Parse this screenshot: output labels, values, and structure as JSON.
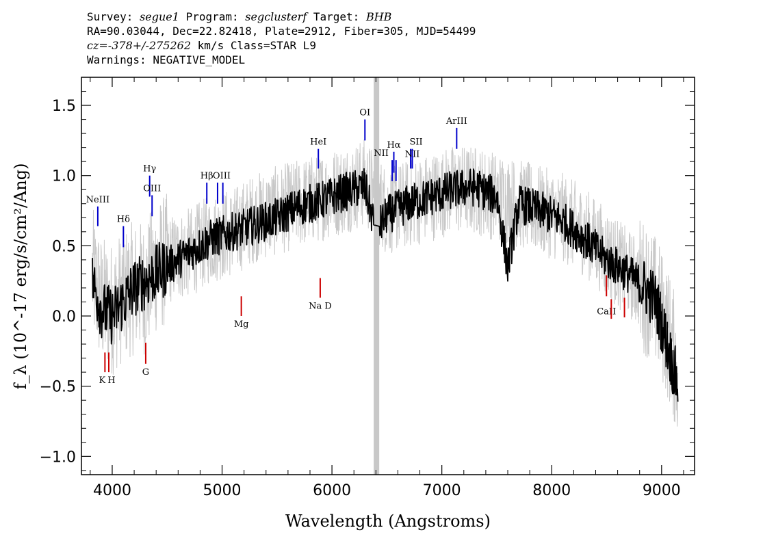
{
  "header": {
    "line1_a": "Survey: ",
    "survey": "segue1",
    "line1_b": " Program: ",
    "program": "segclusterf",
    "line1_c": " Target: ",
    "target": "BHB",
    "line2": "RA=90.03044, Dec=22.82418, Plate=2912, Fiber=305, MJD=54499",
    "line3_cz": "cz=-378+/-275262",
    "line3_rest": " km/s Class=STAR L9",
    "line4": "Warnings: NEGATIVE_MODEL"
  },
  "chart_data": {
    "type": "line",
    "xlabel": "Wavelength (Angstroms)",
    "ylabel": "f_λ (10^-17 erg/s/cm²/Ang)",
    "xlim": [
      3720,
      9300
    ],
    "ylim": [
      -1.13,
      1.7
    ],
    "xticks": [
      4000,
      5000,
      6000,
      7000,
      8000,
      9000
    ],
    "xtick_labels": [
      "4000",
      "5000",
      "6000",
      "7000",
      "8000",
      "9000"
    ],
    "yticks": [
      1.5,
      1.0,
      0.5,
      0.0,
      -0.5,
      -1.0
    ],
    "ytick_labels": [
      "1.5",
      "1.0",
      "0.5",
      "0.0",
      "−0.5",
      "−1.0"
    ],
    "grid": false,
    "masked_band": [
      6380,
      6430
    ],
    "series": [
      {
        "color": "#c8c8c8",
        "x": [
          3820,
          3900,
          4000,
          4100,
          4200,
          4300,
          4400,
          4500,
          4700,
          4900,
          5100,
          5300,
          5500,
          5700,
          5900,
          6100,
          6300,
          6500,
          6700,
          6900,
          7100,
          7300,
          7500,
          7700,
          7900,
          8100,
          8300,
          8500,
          8700,
          8850,
          8950,
          9050,
          9150
        ],
        "y": [
          0.3,
          0.1,
          0.05,
          0.15,
          0.2,
          0.2,
          0.35,
          0.4,
          0.45,
          0.55,
          0.6,
          0.7,
          0.75,
          0.8,
          0.85,
          0.9,
          0.95,
          0.75,
          0.8,
          0.85,
          0.9,
          0.9,
          0.85,
          0.8,
          0.75,
          0.7,
          0.6,
          0.45,
          0.3,
          0.2,
          0.1,
          -0.1,
          -0.4
        ]
      },
      {
        "color": "#000000",
        "x": [
          3820,
          3900,
          4000,
          4100,
          4200,
          4300,
          4400,
          4500,
          4700,
          4900,
          5100,
          5300,
          5500,
          5700,
          5900,
          6100,
          6300,
          6400,
          6500,
          6700,
          6900,
          7100,
          7300,
          7500,
          7600,
          7700,
          7900,
          8100,
          8300,
          8500,
          8700,
          8850,
          8950,
          9050,
          9150
        ],
        "y": [
          0.25,
          0.05,
          0.0,
          0.1,
          0.2,
          0.25,
          0.3,
          0.35,
          0.45,
          0.55,
          0.6,
          0.65,
          0.7,
          0.78,
          0.82,
          0.88,
          0.92,
          0.6,
          0.72,
          0.8,
          0.85,
          0.9,
          0.92,
          0.85,
          0.35,
          0.8,
          0.75,
          0.68,
          0.55,
          0.4,
          0.3,
          0.2,
          0.1,
          -0.2,
          -0.5
        ]
      }
    ],
    "line_markers": [
      {
        "label": "NeIII",
        "x": 3869,
        "y1": 0.64,
        "y2": 0.78,
        "color": "#0000cc",
        "anchor": "top"
      },
      {
        "label": "Hδ",
        "x": 4102,
        "y1": 0.49,
        "y2": 0.64,
        "color": "#0000cc",
        "anchor": "top"
      },
      {
        "label": "Hγ",
        "x": 4341,
        "y1": 0.85,
        "y2": 1.0,
        "color": "#0000cc",
        "anchor": "top"
      },
      {
        "label": "OIII",
        "x": 4363,
        "y1": 0.71,
        "y2": 0.86,
        "color": "#0000cc",
        "anchor": "top"
      },
      {
        "label": "Hβ",
        "x": 4861,
        "y1": 0.8,
        "y2": 0.95,
        "color": "#0000cc",
        "anchor": "top"
      },
      {
        "label": "OIII",
        "x": 4959,
        "y1": 0.8,
        "y2": 0.95,
        "color": "#0000cc",
        "anchor": "top",
        "label_dx": 6
      },
      {
        "label": "",
        "x": 5007,
        "y1": 0.8,
        "y2": 0.95,
        "color": "#0000cc",
        "anchor": "top"
      },
      {
        "label": "HeI",
        "x": 5876,
        "y1": 1.05,
        "y2": 1.19,
        "color": "#0000cc",
        "anchor": "top"
      },
      {
        "label": "OI",
        "x": 6300,
        "y1": 1.25,
        "y2": 1.4,
        "color": "#0000cc",
        "anchor": "top"
      },
      {
        "label": "NII",
        "x": 6548,
        "y1": 0.96,
        "y2": 1.11,
        "color": "#0000cc",
        "anchor": "top",
        "label_dx": -16
      },
      {
        "label": "Hα",
        "x": 6563,
        "y1": 1.02,
        "y2": 1.17,
        "color": "#0000cc",
        "anchor": "top"
      },
      {
        "label": "",
        "x": 6583,
        "y1": 0.96,
        "y2": 1.11,
        "color": "#0000cc",
        "anchor": "top"
      },
      {
        "label": "SII",
        "x": 6716,
        "y1": 1.05,
        "y2": 1.19,
        "color": "#0000cc",
        "anchor": "top",
        "label_dx": 8
      },
      {
        "label": "NII",
        "x": 6731,
        "y1": 1.05,
        "y2": 1.19,
        "color": "#0000cc",
        "anchor": "top",
        "label_yoff": 18
      },
      {
        "label": "ArIII",
        "x": 7135,
        "y1": 1.19,
        "y2": 1.34,
        "color": "#0000cc",
        "anchor": "top"
      },
      {
        "label": "K",
        "x": 3934,
        "y1": -0.4,
        "y2": -0.26,
        "color": "#cc0000",
        "anchor": "bottom",
        "label_dx": -4
      },
      {
        "label": "H",
        "x": 3969,
        "y1": -0.4,
        "y2": -0.26,
        "color": "#cc0000",
        "anchor": "bottom",
        "label_dx": 4
      },
      {
        "label": "G",
        "x": 4305,
        "y1": -0.34,
        "y2": -0.19,
        "color": "#cc0000",
        "anchor": "bottom"
      },
      {
        "label": "Mg",
        "x": 5175,
        "y1": 0.0,
        "y2": 0.14,
        "color": "#cc0000",
        "anchor": "bottom"
      },
      {
        "label": "Na  D",
        "x": 5893,
        "y1": 0.13,
        "y2": 0.27,
        "color": "#cc0000",
        "anchor": "bottom"
      },
      {
        "label": "CaII",
        "x": 8498,
        "y1": 0.14,
        "y2": 0.29,
        "color": "#cc0000",
        "anchor": "bottom_label_above",
        "label_dx": 0
      },
      {
        "label": "",
        "x": 8542,
        "y1": -0.02,
        "y2": 0.12,
        "color": "#cc0000",
        "anchor": "none"
      },
      {
        "label": "",
        "x": 8662,
        "y1": -0.01,
        "y2": 0.13,
        "color": "#cc0000",
        "anchor": "none"
      }
    ]
  }
}
